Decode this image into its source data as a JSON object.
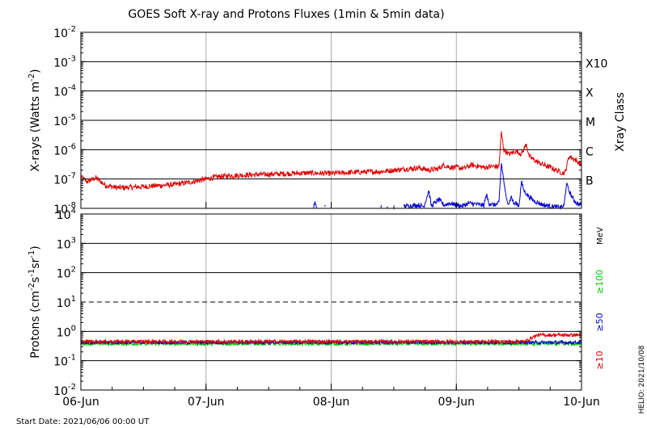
{
  "chart_data": [
    {
      "type": "line",
      "title": "GOES Soft X-ray and Protons Fluxes   (1min & 5min data)",
      "ylabel_parts": [
        "X-rays (Watts m",
        "-2",
        ")"
      ],
      "y_scale": "log",
      "ylim": [
        1e-08,
        0.01
      ],
      "y_ticks": [
        {
          "base": "10",
          "exp": "-8"
        },
        {
          "base": "10",
          "exp": "-7"
        },
        {
          "base": "10",
          "exp": "-6"
        },
        {
          "base": "10",
          "exp": "-5"
        },
        {
          "base": "10",
          "exp": "-4"
        },
        {
          "base": "10",
          "exp": "-3"
        },
        {
          "base": "10",
          "exp": "-2"
        }
      ],
      "right_axis_label": "Xray Class",
      "classes": [
        {
          "label": "B",
          "at": 1e-07
        },
        {
          "label": "C",
          "at": 1e-06
        },
        {
          "label": "M",
          "at": 1e-05
        },
        {
          "label": "X",
          "at": 0.0001
        },
        {
          "label": "X10",
          "at": 0.001
        }
      ],
      "horizontal_lines_at": [
        1e-07,
        1e-06,
        1e-05,
        0.0001,
        0.001
      ],
      "x_range_days": [
        "2021-06-06",
        "2021-06-10"
      ],
      "series": [
        {
          "color": "#dd0000",
          "points": [
            [
              0.0,
              1.2e-07
            ],
            [
              0.05,
              8e-08
            ],
            [
              0.12,
              1.1e-07
            ],
            [
              0.2,
              6e-08
            ],
            [
              0.3,
              5e-08
            ],
            [
              0.5,
              5.5e-08
            ],
            [
              0.75,
              6.5e-08
            ],
            [
              0.85,
              7.5e-08
            ],
            [
              0.95,
              9e-08
            ],
            [
              1.0,
              1e-07
            ],
            [
              1.1,
              1.2e-07
            ],
            [
              1.2,
              1.3e-07
            ],
            [
              1.4,
              1.4e-07
            ],
            [
              1.6,
              1.5e-07
            ],
            [
              1.8,
              1.6e-07
            ],
            [
              2.0,
              1.55e-07
            ],
            [
              2.2,
              1.7e-07
            ],
            [
              2.4,
              1.8e-07
            ],
            [
              2.5,
              2e-07
            ],
            [
              2.6,
              2.2e-07
            ],
            [
              2.7,
              2.4e-07
            ],
            [
              2.78,
              2e-07
            ],
            [
              2.85,
              2.2e-07
            ],
            [
              2.9,
              3e-07
            ],
            [
              2.95,
              2.5e-07
            ],
            [
              3.0,
              2.5e-07
            ],
            [
              3.06,
              2.3e-07
            ],
            [
              3.12,
              3e-07
            ],
            [
              3.22,
              2.5e-07
            ],
            [
              3.3,
              2.7e-07
            ],
            [
              3.34,
              2.6e-07
            ],
            [
              3.36,
              3.8e-06
            ],
            [
              3.38,
              1e-06
            ],
            [
              3.42,
              7e-07
            ],
            [
              3.48,
              9e-07
            ],
            [
              3.52,
              7e-07
            ],
            [
              3.56,
              1.6e-06
            ],
            [
              3.58,
              6e-07
            ],
            [
              3.64,
              4e-07
            ],
            [
              3.66,
              3.6e-07
            ],
            [
              3.7,
              3e-07
            ],
            [
              3.75,
              2.5e-07
            ],
            [
              3.8,
              2e-07
            ],
            [
              3.85,
              1.6e-07
            ],
            [
              3.87,
              1.7e-07
            ],
            [
              3.9,
              6e-07
            ],
            [
              3.95,
              4.5e-07
            ],
            [
              4.0,
              3e-07
            ]
          ]
        },
        {
          "color": "#0000cc",
          "points": [
            [
              1.86,
              1.1e-08
            ],
            [
              1.87,
              1.6e-08
            ],
            [
              1.88,
              1.05e-08
            ],
            [
              1.95,
              1.2e-08
            ],
            [
              2.4,
              1.1e-08
            ],
            [
              2.45,
              1.05e-08
            ],
            [
              2.5,
              1.1e-08
            ],
            [
              2.6,
              1.2e-08
            ],
            [
              2.7,
              1.3e-08
            ],
            [
              2.74,
              1.15e-08
            ],
            [
              2.78,
              4e-08
            ],
            [
              2.8,
              1.2e-08
            ],
            [
              2.86,
              2e-08
            ],
            [
              2.9,
              1.3e-08
            ],
            [
              2.95,
              1.5e-08
            ],
            [
              3.0,
              1.3e-08
            ],
            [
              3.05,
              1.2e-08
            ],
            [
              3.1,
              1.5e-08
            ],
            [
              3.2,
              1.3e-08
            ],
            [
              3.22,
              1.25e-08
            ],
            [
              3.24,
              3e-08
            ],
            [
              3.26,
              1.5e-08
            ],
            [
              3.3,
              1.3e-08
            ],
            [
              3.34,
              1.5e-08
            ],
            [
              3.36,
              3.5e-07
            ],
            [
              3.38,
              8e-08
            ],
            [
              3.4,
              2e-08
            ],
            [
              3.42,
              1.5e-08
            ],
            [
              3.44,
              2.5e-08
            ],
            [
              3.46,
              1.4e-08
            ],
            [
              3.48,
              1.5e-08
            ],
            [
              3.5,
              1.2e-08
            ],
            [
              3.52,
              8e-08
            ],
            [
              3.54,
              4e-08
            ],
            [
              3.58,
              2.5e-08
            ],
            [
              3.62,
              1.8e-08
            ],
            [
              3.66,
              1.5e-08
            ],
            [
              3.7,
              1.3e-08
            ],
            [
              3.75,
              1.2e-08
            ],
            [
              3.8,
              1.1e-08
            ],
            [
              3.84,
              1.1e-08
            ],
            [
              3.86,
              1.2e-08
            ],
            [
              3.88,
              7e-08
            ],
            [
              3.9,
              4e-08
            ],
            [
              3.93,
              2.2e-08
            ],
            [
              3.96,
              1.5e-08
            ],
            [
              4.0,
              1.3e-08
            ]
          ]
        }
      ],
      "secondary_blue_from_day": 2.58,
      "red_noise_until_day": 2.58
    },
    {
      "type": "line",
      "ylabel_parts": [
        "Protons (cm",
        "-2",
        "s",
        "-1",
        "sr",
        "-1",
        ")"
      ],
      "y_scale": "log",
      "ylim": [
        0.01,
        10000.0
      ],
      "y_ticks": [
        {
          "base": "10",
          "exp": "-2"
        },
        {
          "base": "10",
          "exp": "-1"
        },
        {
          "base": "10",
          "exp": "0"
        },
        {
          "base": "10",
          "exp": "1"
        },
        {
          "base": "10",
          "exp": "2"
        },
        {
          "base": "10",
          "exp": "3"
        },
        {
          "base": "10",
          "exp": "4"
        }
      ],
      "horizontal_lines_at": [
        0.1,
        1,
        100.0,
        1000.0
      ],
      "dashed_line_at": 10,
      "right_unit": "MeV",
      "series": [
        {
          "name": "≥10",
          "color": "#dd0000",
          "level": 0.45,
          "rise_from_day": 3.55,
          "rise_to": 0.75
        },
        {
          "name": "≥50",
          "color": "#0000cc",
          "level": 0.42
        },
        {
          "name": "≥100",
          "color": "#00cc00",
          "level": 0.38
        }
      ],
      "x_ticks": [
        "06-Jun",
        "07-Jun",
        "08-Jun",
        "09-Jun",
        "10-Jun"
      ]
    }
  ],
  "footer": {
    "start_date": "Start Date: 2021/06/06 00:00 UT",
    "stamp": "HELIO: 2021/10/08"
  }
}
